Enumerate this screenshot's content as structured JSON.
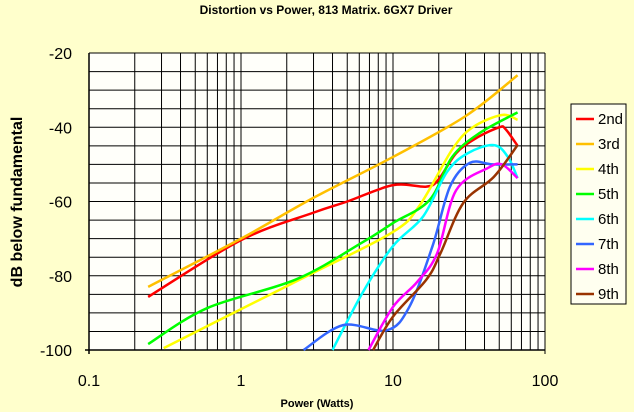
{
  "chart_data": {
    "type": "line",
    "title": "Distortion vs Power, 813 Matrix. 6GX7 Driver",
    "xlabel": "Power (Watts)",
    "ylabel": "dB below fundamental",
    "xscale": "log",
    "xlim": [
      0.1,
      100
    ],
    "ylim": [
      -100,
      -20
    ],
    "xticks": [
      "0.1",
      "1",
      "10",
      "100"
    ],
    "yticks": [
      "-20",
      "-40",
      "-60",
      "-80",
      "-100"
    ],
    "grid": true,
    "legend_position": "right",
    "series": [
      {
        "name": "2nd",
        "color": "#ff0000",
        "x": [
          0.245,
          1,
          3,
          5,
          10,
          16.6,
          20,
          26,
          35,
          50,
          55,
          66
        ],
        "y": [
          -85.7,
          -70.4,
          -63,
          -60,
          -55.6,
          -56,
          -54,
          -47,
          -43,
          -40,
          -40.5,
          -45
        ]
      },
      {
        "name": "3rd",
        "color": "#ffc000",
        "x": [
          0.245,
          1,
          3,
          10,
          30,
          66
        ],
        "y": [
          -83,
          -70,
          -59,
          -48,
          -37,
          -26
        ]
      },
      {
        "name": "4th",
        "color": "#ffff00",
        "x": [
          0.31,
          1,
          2.96,
          10,
          15,
          24.5,
          33.5,
          52,
          66
        ],
        "y": [
          -99.5,
          -89,
          -79.3,
          -68.2,
          -61,
          -46,
          -40,
          -36.7,
          -38
        ]
      },
      {
        "name": "5th",
        "color": "#00ff00",
        "x": [
          0.245,
          0.6,
          2.3,
          6.3,
          10,
          17.4,
          24.5,
          37,
          66
        ],
        "y": [
          -98.4,
          -88.7,
          -81,
          -71,
          -65.8,
          -59.6,
          -48,
          -41.6,
          -36
        ]
      },
      {
        "name": "6th",
        "color": "#00ffff",
        "x": [
          4.0,
          6.3,
          10,
          15.8,
          22.7,
          31,
          46,
          57,
          66
        ],
        "y": [
          -100,
          -84.6,
          -72,
          -64,
          -52,
          -47,
          -44.8,
          -48,
          -53.7
        ]
      },
      {
        "name": "7th",
        "color": "#3366ff",
        "x": [
          2.58,
          4.7,
          9.1,
          12.8,
          18.2,
          23.7,
          32,
          45,
          66
        ],
        "y": [
          -100,
          -93.3,
          -94.7,
          -88.4,
          -72,
          -56,
          -49.6,
          -50,
          -50
        ]
      },
      {
        "name": "8th",
        "color": "#ff00ff",
        "x": [
          6.9,
          10,
          14.4,
          19.5,
          26,
          42,
          52,
          66
        ],
        "y": [
          -100,
          -88.4,
          -81.7,
          -74,
          -57,
          -51,
          -50,
          -53.7
        ]
      },
      {
        "name": "9th",
        "color": "#993300",
        "x": [
          7.4,
          10,
          16.6,
          20.5,
          29,
          46,
          66
        ],
        "y": [
          -100,
          -91,
          -81,
          -74,
          -60.4,
          -53.4,
          -44.8
        ]
      }
    ]
  }
}
